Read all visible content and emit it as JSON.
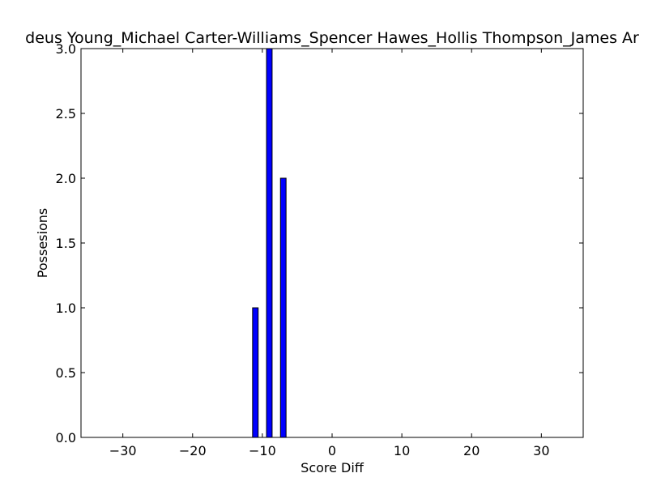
{
  "chart_data": {
    "type": "bar",
    "title": "deus Young_Michael Carter-Williams_Spencer Hawes_Hollis Thompson_James Ar",
    "xlabel": "Score Diff",
    "ylabel": "Possesions",
    "xlim": [
      -36,
      36
    ],
    "ylim": [
      0,
      3
    ],
    "xticks": [
      "−30",
      "−20",
      "−10",
      "0",
      "10",
      "20",
      "30"
    ],
    "xtick_values": [
      -30,
      -20,
      -10,
      0,
      10,
      20,
      30
    ],
    "yticks": [
      "0.0",
      "0.5",
      "1.0",
      "1.5",
      "2.0",
      "2.5",
      "3.0"
    ],
    "ytick_values": [
      0,
      0.5,
      1,
      1.5,
      2,
      2.5,
      3
    ],
    "bar_color": "#0000ff",
    "grid": false,
    "bars": [
      {
        "x": -11,
        "value": 1
      },
      {
        "x": -9,
        "value": 3
      },
      {
        "x": -7,
        "value": 2
      }
    ]
  }
}
